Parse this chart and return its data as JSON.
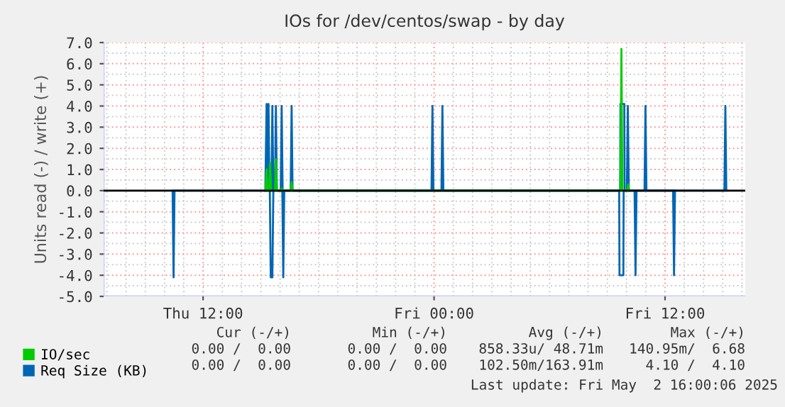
{
  "chart_data": {
    "type": "line",
    "title": "IOs for /dev/centos/swap - by day",
    "ylabel": "Units read (-) / write (+)",
    "xlim": [
      "2025-05-01T06:50",
      "2025-05-02T16:10"
    ],
    "xticks": [
      {
        "value": "2025-05-01T12:00",
        "label": "Thu 12:00"
      },
      {
        "value": "2025-05-02T00:00",
        "label": "Fri 00:00"
      },
      {
        "value": "2025-05-02T12:00",
        "label": "Fri 12:00"
      }
    ],
    "ylim": [
      -5,
      7
    ],
    "yticks": [
      {
        "value": -5,
        "label": "-5.0"
      },
      {
        "value": -4,
        "label": "-4.0"
      },
      {
        "value": -3,
        "label": "-3.0"
      },
      {
        "value": -2,
        "label": "-2.0"
      },
      {
        "value": -1,
        "label": "-1.0"
      },
      {
        "value": 0,
        "label": "0.0"
      },
      {
        "value": 1,
        "label": "1.0"
      },
      {
        "value": 2,
        "label": "2.0"
      },
      {
        "value": 3,
        "label": "3.0"
      },
      {
        "value": 4,
        "label": "4.0"
      },
      {
        "value": 5,
        "label": "5.0"
      },
      {
        "value": 6,
        "label": "6.0"
      },
      {
        "value": 7,
        "label": "7.0"
      }
    ],
    "grid": true,
    "legend": "bottom left",
    "marker": "none",
    "line_style": "solid",
    "series": [
      {
        "name": "Req Size (KB)",
        "color": "#0066b3",
        "x": [
          "2025-05-01T15:14",
          "2025-05-01T15:18",
          "2025-05-01T15:21",
          "2025-05-01T15:24",
          "2025-05-01T15:27",
          "2025-05-01T15:33",
          "2025-05-01T15:36",
          "2025-05-01T15:39",
          "2025-05-01T15:44",
          "2025-05-01T15:47",
          "2025-05-01T15:50",
          "2025-05-01T16:02",
          "2025-05-01T16:05",
          "2025-05-01T16:08",
          "2025-05-01T16:33",
          "2025-05-01T16:36",
          "2025-05-01T16:39",
          "2025-05-01T23:52",
          "2025-05-01T23:55",
          "2025-05-01T23:58",
          "2025-05-02T00:23",
          "2025-05-02T00:26",
          "2025-05-02T00:29",
          "2025-05-02T09:40",
          "2025-05-02T09:41",
          "2025-05-02T09:53",
          "2025-05-02T09:54",
          "2025-05-02T10:01",
          "2025-05-02T10:04",
          "2025-05-02T10:07",
          "2025-05-02T10:56",
          "2025-05-02T10:59",
          "2025-05-02T11:02",
          "2025-05-02T15:05",
          "2025-05-02T15:08",
          "2025-05-02T15:11"
        ],
        "values": [
          0,
          4.1,
          0,
          4.1,
          0,
          0,
          4.0,
          0,
          0,
          4.0,
          0,
          0,
          4.0,
          0,
          0,
          4.0,
          0,
          0,
          4.0,
          0,
          0,
          4.0,
          0,
          0,
          4.1,
          4.1,
          0,
          0,
          4.0,
          0,
          0,
          4.0,
          0,
          0,
          4.0,
          0
        ]
      },
      {
        "color": "#0066b3",
        "x": [
          "2025-05-01T10:25",
          "2025-05-01T10:28",
          "2025-05-01T10:31",
          "2025-05-01T15:28",
          "2025-05-01T15:31",
          "2025-05-01T15:34",
          "2025-05-01T15:36",
          "2025-05-01T15:39",
          "2025-05-01T16:07",
          "2025-05-01T16:10",
          "2025-05-01T16:13",
          "2025-05-02T09:37",
          "2025-05-02T09:38",
          "2025-05-02T09:50",
          "2025-05-02T09:51",
          "2025-05-02T10:25",
          "2025-05-02T10:28",
          "2025-05-02T10:31",
          "2025-05-02T12:25",
          "2025-05-02T12:28",
          "2025-05-02T12:31"
        ],
        "values": [
          0,
          -4.1,
          0,
          0,
          -4.1,
          -4.1,
          -4.1,
          0,
          0,
          -4.1,
          0,
          0,
          -4.0,
          -4.0,
          0,
          0,
          -4.0,
          0,
          0,
          -4.0,
          0
        ]
      },
      {
        "name": "IO/sec",
        "color": "#00cc00",
        "x": [
          "2025-05-01T15:15",
          "2025-05-01T15:18",
          "2025-05-01T15:21",
          "2025-05-01T15:26",
          "2025-05-01T15:29",
          "2025-05-01T15:32",
          "2025-05-01T15:44",
          "2025-05-01T15:47",
          "2025-05-01T15:50",
          "2025-05-01T16:02",
          "2025-05-01T16:05",
          "2025-05-01T16:08",
          "2025-05-01T16:33",
          "2025-05-01T16:36",
          "2025-05-01T16:39",
          "2025-05-02T09:41",
          "2025-05-02T09:44",
          "2025-05-02T09:47",
          "2025-05-02T10:02",
          "2025-05-02T10:05",
          "2025-05-02T10:08"
        ],
        "values": [
          0,
          1.0,
          0,
          0,
          1.3,
          0,
          0,
          1.5,
          0,
          0,
          0.1,
          0,
          0,
          0.4,
          0,
          0,
          6.7,
          0,
          0,
          0.3,
          0
        ]
      }
    ],
    "ref_lines": [
      {
        "axis": "y",
        "value": 0,
        "color": "#000000"
      }
    ],
    "annotations": [
      "Cur (-/+)",
      "Min (-/+)",
      "Avg (-/+)",
      "Max (-/+)",
      "0.00 /  0.00",
      "0.00 /  0.00",
      "858.33u/ 48.71m",
      "140.95m/  6.68",
      "0.00 /  0.00",
      "0.00 /  0.00",
      "102.50m/163.91m",
      "4.10 /  4.10",
      "Last update: Fri May  2 16:00:06 2025"
    ]
  }
}
